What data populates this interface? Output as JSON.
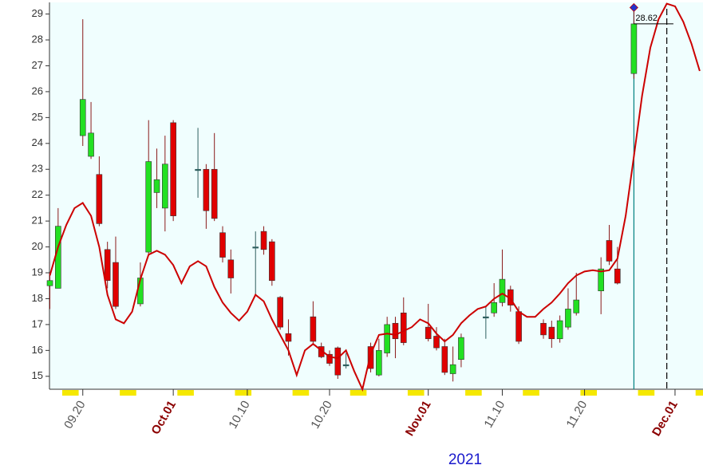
{
  "chart_data": {
    "type": "candlestick",
    "ylim": [
      14.5,
      29.45
    ],
    "yticks": [
      15,
      16,
      17,
      18,
      19,
      20,
      21,
      22,
      23,
      24,
      25,
      26,
      27,
      28,
      29
    ],
    "xlim": [
      0.95,
      80.4
    ],
    "xticks": [
      {
        "value": 5,
        "label": "09.20",
        "color": "#555555"
      },
      {
        "value": 16,
        "label": "Oct.01",
        "color": "#8b0000"
      },
      {
        "value": 25,
        "label": "10.10",
        "color": "#555555"
      },
      {
        "value": 35,
        "label": "10.20",
        "color": "#555555"
      },
      {
        "value": 47,
        "label": "Nov.01",
        "color": "#8b0000"
      },
      {
        "value": 56,
        "label": "11.10",
        "color": "#555555"
      },
      {
        "value": 66,
        "label": "11.20",
        "color": "#555555"
      },
      {
        "value": 77,
        "label": "Dec.01",
        "color": "#8b0000"
      }
    ],
    "xlabel": "2021",
    "up_color": "#22e022",
    "down_color": "#e00000",
    "doji_color": "#2f5f5f",
    "background": "#f0fefe",
    "candles": {
      "x": [
        1,
        2,
        5,
        6,
        7,
        8,
        9,
        12,
        13,
        14,
        15,
        16,
        19,
        20,
        21,
        22,
        23,
        26,
        27,
        28,
        29,
        30,
        33,
        34,
        35,
        36,
        37,
        40,
        41,
        42,
        43,
        44,
        47,
        48,
        49,
        50,
        51,
        54,
        55,
        56,
        57,
        58,
        61,
        62,
        63,
        64,
        65,
        68,
        69,
        70,
        72
      ],
      "open": [
        18.5,
        18.4,
        24.3,
        23.5,
        22.8,
        19.9,
        19.4,
        17.8,
        19.8,
        22.1,
        21.5,
        24.8,
        22.95,
        23.0,
        23.0,
        20.55,
        19.5,
        20.0,
        20.6,
        20.2,
        18.05,
        16.65,
        17.3,
        16.15,
        15.85,
        16.1,
        15.4,
        16.15,
        15.05,
        15.9,
        17.05,
        17.45,
        16.9,
        16.55,
        16.15,
        15.1,
        15.65,
        17.3,
        17.45,
        17.85,
        18.35,
        17.5,
        17.05,
        16.9,
        16.45,
        16.9,
        17.45,
        18.3,
        20.25,
        19.15,
        26.7
      ],
      "high": [
        19.0,
        21.5,
        28.8,
        25.6,
        23.5,
        20.2,
        20.4,
        19.4,
        24.9,
        23.8,
        24.3,
        24.9,
        24.6,
        23.2,
        24.4,
        20.8,
        19.9,
        20.6,
        20.8,
        20.3,
        18.1,
        17.2,
        17.9,
        16.3,
        16.0,
        16.15,
        15.9,
        16.3,
        16.45,
        17.3,
        17.3,
        18.05,
        17.8,
        16.9,
        16.45,
        16.15,
        16.65,
        17.7,
        18.6,
        19.9,
        18.5,
        17.7,
        17.2,
        17.15,
        17.35,
        18.4,
        19.0,
        19.6,
        20.85,
        20.0,
        29.25
      ],
      "low": [
        17.6,
        18.4,
        23.9,
        23.4,
        20.8,
        18.4,
        17.6,
        17.7,
        19.7,
        21.5,
        20.6,
        21.0,
        21.9,
        20.7,
        21.0,
        19.4,
        18.2,
        18.1,
        19.7,
        18.5,
        16.8,
        15.8,
        16.2,
        15.7,
        15.4,
        14.9,
        15.3,
        15.15,
        15.0,
        15.75,
        15.7,
        16.2,
        16.35,
        16.0,
        15.05,
        14.8,
        15.35,
        16.45,
        17.3,
        17.7,
        17.5,
        16.25,
        16.45,
        16.1,
        16.3,
        16.8,
        17.35,
        17.4,
        19.3,
        18.55,
        26.5
      ],
      "close": [
        18.7,
        20.8,
        25.7,
        24.4,
        20.9,
        18.7,
        17.7,
        18.8,
        23.3,
        22.6,
        23.2,
        21.2,
        23.0,
        21.4,
        21.1,
        19.6,
        18.8,
        20.0,
        19.9,
        18.7,
        16.9,
        16.35,
        16.35,
        15.75,
        15.5,
        15.05,
        15.45,
        15.3,
        16.0,
        17.0,
        16.45,
        16.3,
        16.45,
        16.1,
        15.15,
        15.45,
        16.5,
        17.25,
        17.85,
        18.75,
        17.75,
        16.35,
        16.6,
        16.45,
        17.15,
        17.6,
        17.95,
        19.15,
        19.45,
        18.6,
        28.62
      ]
    },
    "line": {
      "color": "#cc0000",
      "x": [
        1,
        2,
        3,
        4,
        5,
        6,
        7,
        8,
        9,
        10,
        11,
        12,
        13,
        14,
        15,
        16,
        17,
        18,
        19,
        20,
        21,
        22,
        23,
        24,
        25,
        26,
        27,
        28,
        29,
        30,
        31,
        32,
        33,
        34,
        35,
        36,
        37,
        38,
        39,
        40,
        41,
        42,
        43,
        44,
        45,
        46,
        47,
        48,
        49,
        50,
        51,
        52,
        53,
        54,
        55,
        56,
        57,
        58,
        59,
        60,
        61,
        62,
        63,
        64,
        65,
        66,
        67,
        68,
        69,
        70,
        71,
        72,
        73,
        74,
        75,
        76,
        77,
        78,
        79,
        80
      ],
      "values": [
        18.9,
        20.0,
        20.85,
        21.5,
        21.7,
        21.2,
        20.0,
        18.15,
        17.2,
        17.05,
        17.5,
        18.75,
        19.7,
        19.85,
        19.7,
        19.3,
        18.6,
        19.25,
        19.45,
        19.25,
        18.45,
        17.85,
        17.45,
        17.15,
        17.5,
        18.15,
        17.9,
        17.2,
        16.6,
        16.0,
        15.05,
        16.0,
        16.25,
        16.0,
        15.75,
        15.7,
        16.0,
        15.2,
        14.5,
        15.85,
        16.6,
        16.65,
        16.6,
        16.75,
        16.9,
        17.2,
        17.05,
        16.65,
        16.35,
        16.6,
        17.05,
        17.35,
        17.6,
        17.7,
        18.0,
        18.2,
        18.0,
        17.5,
        17.3,
        17.3,
        17.6,
        17.85,
        18.2,
        18.6,
        18.9,
        19.05,
        19.1,
        19.05,
        19.1,
        19.55,
        21.2,
        23.5,
        25.85,
        27.7,
        28.8,
        29.4,
        29.3,
        28.7,
        27.85,
        26.8
      ]
    },
    "weekends": [
      3,
      10,
      17,
      24,
      31,
      38,
      45,
      52,
      59,
      66,
      73,
      80
    ],
    "weekend_color": "#f5e800",
    "vlines": [
      {
        "x": 72,
        "color": "#008080",
        "dash": false
      },
      {
        "x": 76,
        "color": "#000000",
        "dash": true
      }
    ],
    "crosshair": {
      "value": 28.62,
      "from": 72,
      "to": 76
    }
  }
}
